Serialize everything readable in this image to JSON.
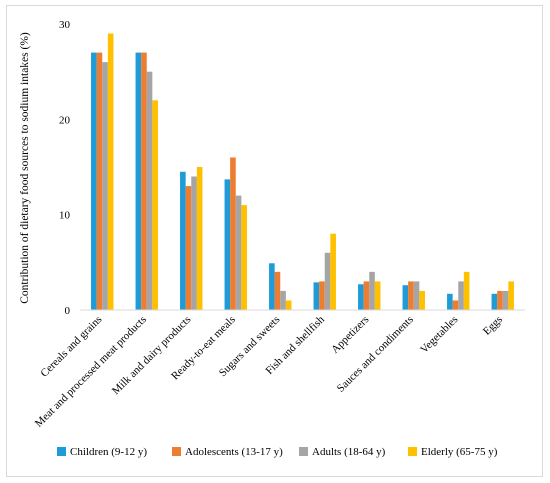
{
  "chart_data": {
    "type": "bar",
    "title": "",
    "xlabel": "",
    "ylabel": "Contribution of dietary food sources to sodium intakes (%)",
    "ylim": [
      0,
      30
    ],
    "yticks": [
      "0",
      "10",
      "20",
      "30"
    ],
    "grid": false,
    "legend_position": "bottom",
    "categories": [
      "Cereals and grains",
      "Meat and processed meat products",
      "Milk and dairy products",
      "Ready-to-eat meals",
      "Sugars and sweets",
      "Fish and shellfish",
      "Appetizers",
      "Sauces and condiments",
      "Vegetables",
      "Eggs"
    ],
    "series": [
      {
        "name": "Children (9-12 y)",
        "color": "#1f9bd7",
        "values": [
          27,
          27,
          14.5,
          13.7,
          4.9,
          2.9,
          2.7,
          2.6,
          1.7,
          1.7
        ]
      },
      {
        "name": "Adolescents (13-17 y)",
        "color": "#ed7d31",
        "values": [
          27,
          27,
          13,
          16,
          4,
          3,
          3,
          3,
          1,
          2
        ]
      },
      {
        "name": "Adults (18-64 y)",
        "color": "#a5a5a5",
        "values": [
          26,
          25,
          14,
          12,
          2,
          6,
          4,
          3,
          3,
          2
        ]
      },
      {
        "name": "Elderly (65-75 y)",
        "color": "#ffc000",
        "values": [
          29,
          22,
          15,
          11,
          1,
          8,
          3,
          2,
          4,
          3
        ]
      }
    ]
  }
}
